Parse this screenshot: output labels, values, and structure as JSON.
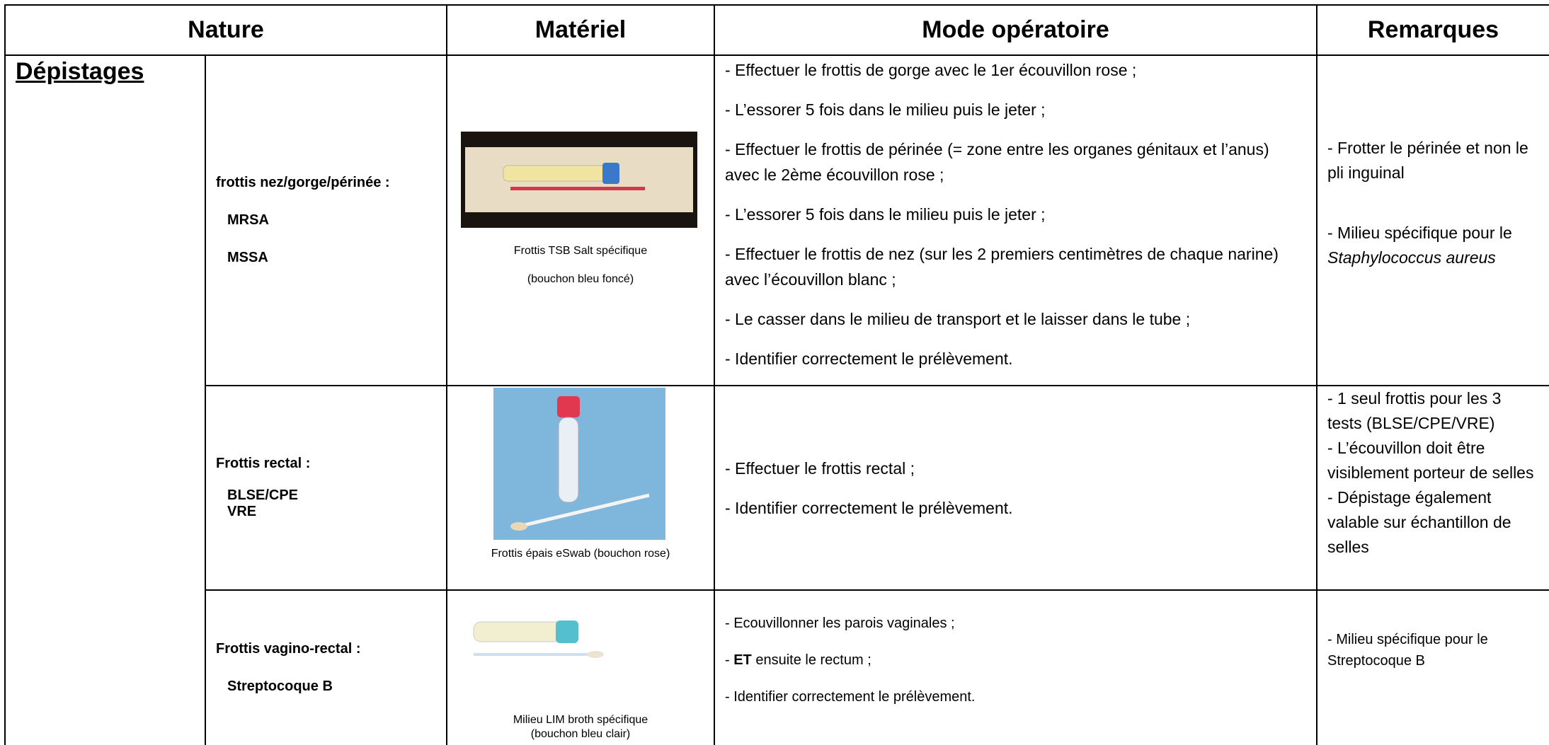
{
  "header": {
    "columns": [
      "Nature",
      "Matériel",
      "Mode opératoire",
      "Remarques"
    ]
  },
  "section": "Dépistages",
  "rows": [
    {
      "nature_title": "frottis nez/gorge/périnée :",
      "nature_items": [
        "MRSA",
        "MSSA"
      ],
      "material_caption": [
        "Frottis TSB Salt spécifique",
        "(bouchon bleu foncé)"
      ],
      "steps": [
        "- Effectuer le frottis de gorge avec le 1er écouvillon rose ;",
        "- L’essorer 5 fois dans le milieu puis le jeter ;",
        "- Effectuer le frottis de périnée (= zone entre les organes génitaux et l’anus) avec le 2ème écouvillon rose ;",
        "- L’essorer 5 fois dans le milieu puis le jeter ;",
        "- Effectuer le frottis de nez (sur les 2 premiers centimètres de chaque narine) avec l’écouvillon blanc ;",
        "- Le casser dans le milieu de transport et le laisser dans le tube ;",
        "- Identifier correctement le prélèvement."
      ],
      "remarks": [
        "- Frotter le périnée et non le pli inguinal",
        {
          "text": "- Milieu spécifique pour le ",
          "italic": "Staphylococcus aureus"
        }
      ]
    },
    {
      "nature_title": "Frottis rectal :",
      "nature_items": [
        "BLSE/CPE",
        "VRE"
      ],
      "material_caption": [
        "Frottis épais  eSwab (bouchon rose)"
      ],
      "steps": [
        "- Effectuer le frottis rectal ;",
        "- Identifier correctement le prélèvement."
      ],
      "remarks": [
        "- 1 seul frottis pour les 3 tests (BLSE/CPE/VRE)",
        "- L’écouvillon doit être visiblement porteur de selles",
        "- Dépistage également valable sur échantillon de selles"
      ]
    },
    {
      "nature_title": "Frottis vagino-rectal :",
      "nature_items": [
        "Streptocoque B"
      ],
      "material_caption": [
        "Milieu LIM broth spécifique",
        "(bouchon bleu clair)"
      ],
      "steps": [
        "- Ecouvillonner les parois vaginales ;",
        {
          "prefix": "- ",
          "bold": "ET",
          "text": " ensuite le rectum ;"
        },
        "- Identifier correctement le prélèvement."
      ],
      "remarks": [
        "- Milieu spécifique pour le Streptocoque B"
      ]
    }
  ]
}
